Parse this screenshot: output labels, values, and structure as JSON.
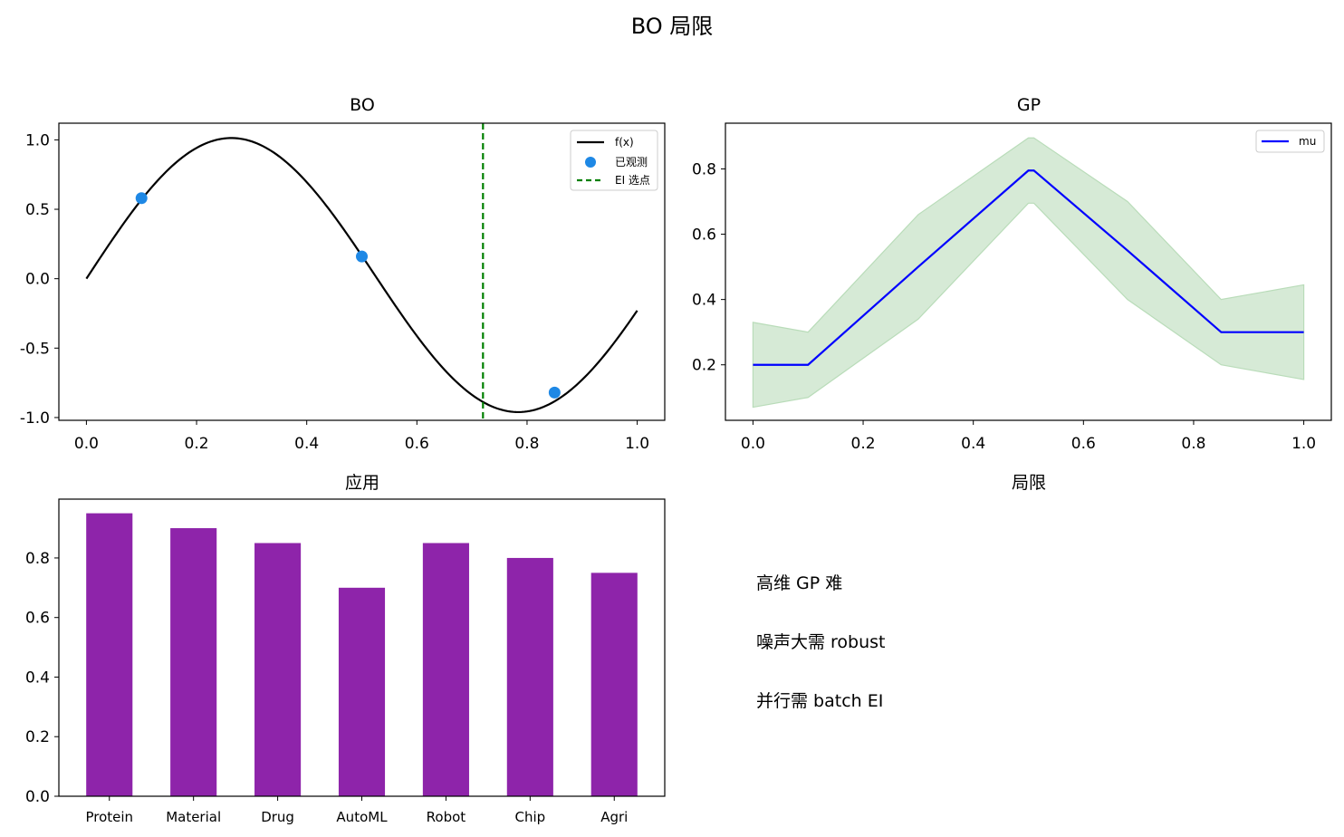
{
  "suptitle": "BO 局限",
  "chart_data": [
    {
      "type": "line",
      "title": "BO",
      "xlim": [
        -0.05,
        1.05
      ],
      "ylim": [
        -1.02,
        1.12
      ],
      "x_ticks": [
        "0.0",
        "0.2",
        "0.4",
        "0.6",
        "0.8",
        "1.0"
      ],
      "y_ticks": [
        "1.0",
        "0.5",
        "0.0",
        "-0.5",
        "-1.0"
      ],
      "legend_position": "top-right",
      "legend": [
        "f(x)",
        "已观测",
        "EI 选点"
      ],
      "series": [
        {
          "name": "f(x)",
          "type": "line",
          "color": "#000000",
          "function_samples": {
            "x_range": [
              0,
              1
            ]
          }
        },
        {
          "name": "已观测",
          "type": "scatter",
          "color": "#1e88e5",
          "x": [
            0.1,
            0.5,
            0.85
          ],
          "y": [
            0.58,
            0.16,
            -0.82
          ]
        },
        {
          "name": "EI 选点",
          "type": "vline",
          "color": "#008000",
          "x": 0.72
        }
      ]
    },
    {
      "type": "line",
      "title": "GP",
      "xlim": [
        -0.05,
        1.05
      ],
      "ylim": [
        0.03,
        0.94
      ],
      "x_ticks": [
        "0.0",
        "0.2",
        "0.4",
        "0.6",
        "0.8",
        "1.0"
      ],
      "y_ticks": [
        "0.8",
        "0.6",
        "0.4",
        "0.2"
      ],
      "legend_position": "top-right",
      "legend": [
        "mu"
      ],
      "series": [
        {
          "name": "mu",
          "color": "#0000ff",
          "x": [
            0,
            0.1,
            0.3,
            0.5,
            0.51,
            0.68,
            0.85,
            0.86,
            1.0
          ],
          "y": [
            0.2,
            0.2,
            0.5,
            0.795,
            0.795,
            0.55,
            0.3,
            0.3,
            0.3
          ]
        },
        {
          "type": "band",
          "color": "#d6ead6",
          "x": [
            0,
            0.1,
            0.3,
            0.5,
            0.51,
            0.68,
            0.85,
            1.0
          ],
          "upper": [
            0.33,
            0.3,
            0.66,
            0.895,
            0.895,
            0.7,
            0.4,
            0.445
          ],
          "lower": [
            0.07,
            0.1,
            0.34,
            0.695,
            0.695,
            0.4,
            0.2,
            0.155
          ]
        }
      ]
    },
    {
      "type": "bar",
      "title": "应用",
      "categories": [
        "Protein",
        "Material",
        "Drug",
        "AutoML",
        "Robot",
        "Chip",
        "Agri"
      ],
      "values": [
        0.95,
        0.9,
        0.85,
        0.7,
        0.85,
        0.8,
        0.75
      ],
      "color": "#8e24aa",
      "ylim": [
        0,
        1.0
      ],
      "y_ticks": [
        "0.8",
        "0.6",
        "0.4",
        "0.2",
        "0.0"
      ]
    }
  ],
  "limits_panel": {
    "title": "局限",
    "lines": [
      "高维 GP 难",
      "噪声大需 robust",
      "并行需 batch EI"
    ]
  }
}
